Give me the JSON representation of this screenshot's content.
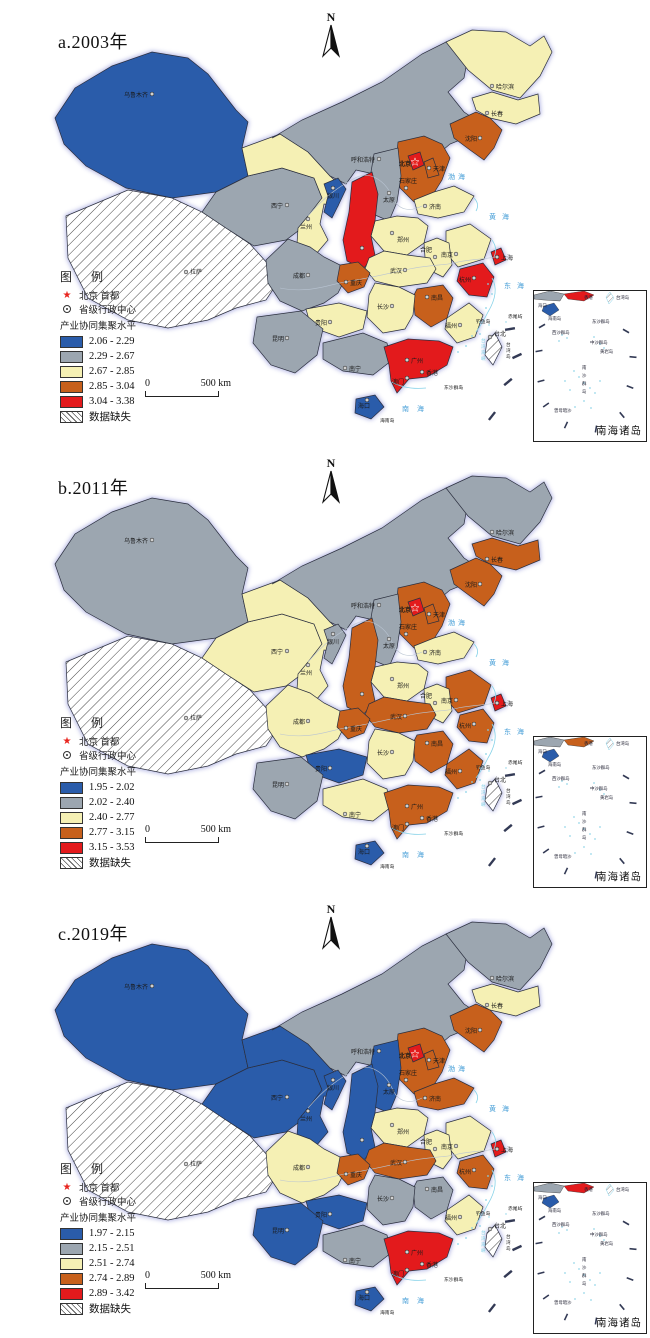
{
  "page_type": "china-choropleth-figure",
  "north_label": "N",
  "palette": {
    "blue": "#2A5CAA",
    "gray": "#9CA6B0",
    "yellow": "#F5F0B4",
    "orange": "#C7601C",
    "red": "#E31A1C",
    "missing_fill": "hatched-white",
    "sea_text": "#4AA0D8",
    "coast_line": "#86D2E8",
    "land_stroke": "#2B2F3E",
    "halo": "#C4C6EA",
    "capital_star": "#E8251F"
  },
  "legend": {
    "title": "图 例",
    "capital_label": "北京 首都",
    "admin_label": "省级行政中心",
    "metric_label": "产业协同集聚水平",
    "missing_label": "数据缺失"
  },
  "scalebar": {
    "zero": "0",
    "distance": "500 km"
  },
  "inset": {
    "caption": "南海诸岛",
    "labels": [
      "香港",
      "台湾岛",
      "海口",
      "海南岛",
      "东沙群岛",
      "西沙群岛",
      "中沙群岛",
      "黄岩岛",
      "南沙群岛",
      "曾母暗沙"
    ]
  },
  "city_labels": [
    "乌鲁木齐",
    "拉萨",
    "西宁",
    "兰州",
    "银川",
    "呼和浩特",
    "哈尔滨",
    "长春",
    "沈阳",
    "北京",
    "天津",
    "石家庄",
    "太原",
    "济南",
    "郑州",
    "合肥",
    "南京",
    "上海",
    "武汉",
    "杭州",
    "南昌",
    "长沙",
    "福州",
    "台北",
    "广州",
    "香港",
    "澳门",
    "南宁",
    "海口",
    "贵阳",
    "昆明",
    "成都",
    "重庆"
  ],
  "sea_labels": [
    "渤海",
    "黄海",
    "东海",
    "南海"
  ],
  "island_labels": [
    "钓鱼岛",
    "赤尾屿",
    "东沙群岛",
    "海南岛",
    "台湾岛",
    "台湾海峡"
  ],
  "chart_data": [
    {
      "type": "choropleth-map",
      "title": "a.2003年",
      "metric": "产业协同集聚水平",
      "class_breaks": [
        "2.06 - 2.29",
        "2.29 - 2.67",
        "2.67 - 2.85",
        "2.85 - 3.04",
        "3.04 - 3.38"
      ],
      "class_colors": [
        "blue",
        "gray",
        "yellow",
        "orange",
        "red"
      ],
      "missing_label": "数据缺失",
      "province_levels": {
        "新疆": 0,
        "西藏": 5,
        "青海": 1,
        "甘肃": 2,
        "宁夏": 0,
        "内蒙古": 1,
        "黑龙江": 2,
        "吉林": 2,
        "辽宁": 3,
        "北京": 4,
        "天津": 3,
        "河北": 3,
        "山西": 1,
        "山东": 2,
        "河南": 2,
        "陕西": 4,
        "江苏": 2,
        "安徽": 2,
        "上海": 4,
        "湖北": 2,
        "浙江": 4,
        "江西": 3,
        "湖南": 2,
        "四川": 1,
        "重庆": 3,
        "贵州": 2,
        "云南": 1,
        "广西": 1,
        "广东": 4,
        "福建": 2,
        "海南": 0,
        "台湾": 5
      }
    },
    {
      "type": "choropleth-map",
      "title": "b.2011年",
      "metric": "产业协同集聚水平",
      "class_breaks": [
        "1.95 - 2.02",
        "2.02 - 2.40",
        "2.40 - 2.77",
        "2.77 - 3.15",
        "3.15 - 3.53"
      ],
      "class_colors": [
        "blue",
        "gray",
        "yellow",
        "orange",
        "red"
      ],
      "missing_label": "数据缺失",
      "province_levels": {
        "新疆": 1,
        "西藏": 5,
        "青海": 2,
        "甘肃": 2,
        "宁夏": 1,
        "内蒙古": 1,
        "黑龙江": 1,
        "吉林": 3,
        "辽宁": 3,
        "北京": 4,
        "天津": 3,
        "河北": 3,
        "山西": 1,
        "山东": 2,
        "河南": 2,
        "陕西": 3,
        "江苏": 3,
        "安徽": 2,
        "上海": 4,
        "湖北": 3,
        "浙江": 3,
        "江西": 3,
        "湖南": 2,
        "四川": 2,
        "重庆": 3,
        "贵州": 0,
        "云南": 1,
        "广西": 2,
        "广东": 3,
        "福建": 3,
        "海南": 0,
        "台湾": 5
      }
    },
    {
      "type": "choropleth-map",
      "title": "c.2019年",
      "metric": "产业协同集聚水平",
      "class_breaks": [
        "1.97 - 2.15",
        "2.15 - 2.51",
        "2.51 - 2.74",
        "2.74 - 2.89",
        "2.89 - 3.42"
      ],
      "class_colors": [
        "blue",
        "gray",
        "yellow",
        "orange",
        "red"
      ],
      "missing_label": "数据缺失",
      "province_levels": {
        "新疆": 0,
        "西藏": 5,
        "青海": 0,
        "甘肃": 0,
        "宁夏": 0,
        "内蒙古": 1,
        "黑龙江": 1,
        "吉林": 2,
        "辽宁": 3,
        "北京": 4,
        "天津": 3,
        "河北": 3,
        "山西": 0,
        "山东": 3,
        "河南": 2,
        "陕西": 0,
        "江苏": 2,
        "安徽": 2,
        "上海": 4,
        "湖北": 3,
        "浙江": 3,
        "江西": 1,
        "湖南": 1,
        "四川": 2,
        "重庆": 3,
        "贵州": 0,
        "云南": 0,
        "广西": 1,
        "广东": 4,
        "福建": 2,
        "海南": 0,
        "台湾": 5
      }
    }
  ],
  "panels": [
    {
      "title": "a.2003年",
      "classes": [
        "2.06 - 2.29",
        "2.29 - 2.67",
        "2.67 - 2.85",
        "2.85 - 3.04",
        "3.04 - 3.38"
      ]
    },
    {
      "title": "b.2011年",
      "classes": [
        "1.95 - 2.02",
        "2.02 - 2.40",
        "2.40 - 2.77",
        "2.77 - 3.15",
        "3.15 - 3.53"
      ]
    },
    {
      "title": "c.2019年",
      "classes": [
        "1.97 - 2.15",
        "2.15 - 2.51",
        "2.51 - 2.74",
        "2.74 - 2.89",
        "2.89 - 3.42"
      ]
    }
  ]
}
